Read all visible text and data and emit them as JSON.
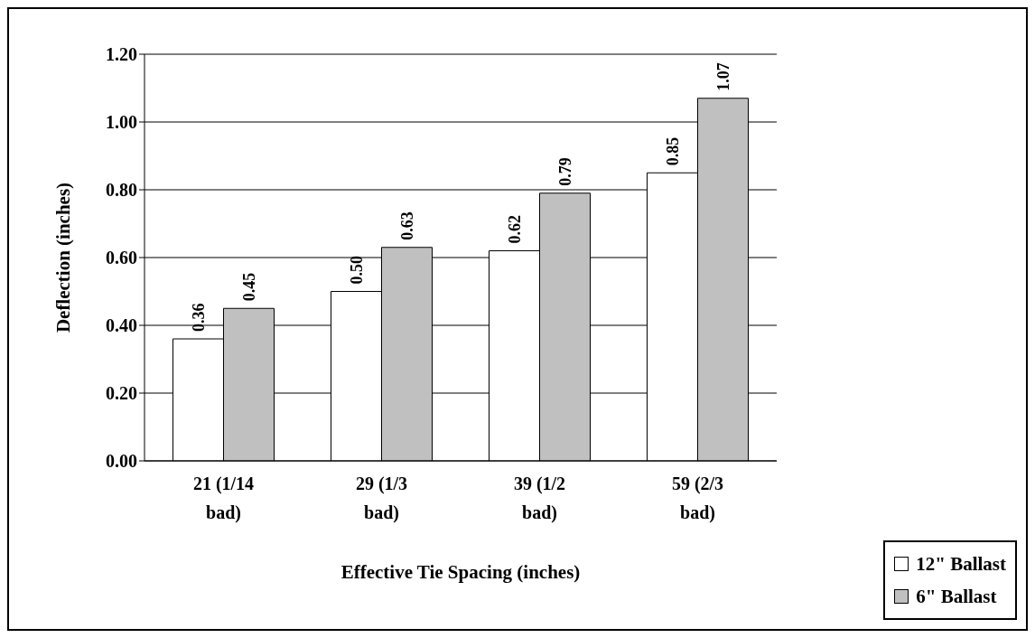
{
  "chart_data": {
    "type": "bar",
    "xlabel": "Effective Tie Spacing (inches)",
    "ylabel": "Deflection (inches)",
    "categories": [
      "21 (1/14 bad)",
      "29 (1/3 bad)",
      "39 (1/2 bad)",
      "59 (2/3 bad)"
    ],
    "series": [
      {
        "name": "12\" Ballast",
        "color": "#ffffff",
        "values": [
          0.36,
          0.5,
          0.62,
          0.85
        ],
        "value_labels": [
          "0.36",
          "0.50",
          "0.62",
          "0.85"
        ]
      },
      {
        "name": "6\" Ballast",
        "color": "#c0c0c0",
        "values": [
          0.45,
          0.63,
          0.79,
          1.07
        ],
        "value_labels": [
          "0.45",
          "0.63",
          "0.79",
          "1.07"
        ]
      }
    ],
    "ylim": [
      0,
      1.2
    ],
    "yticks": [
      {
        "value": 0,
        "label": "0.00"
      },
      {
        "value": 0.2,
        "label": "0.20"
      },
      {
        "value": 0.4,
        "label": "0.40"
      },
      {
        "value": 0.6,
        "label": "0.60"
      },
      {
        "value": 0.8,
        "label": "0.80"
      },
      {
        "value": 1,
        "label": "1.00"
      },
      {
        "value": 1.2,
        "label": "1.20"
      }
    ],
    "grid": "y",
    "legend": "bottom right"
  }
}
